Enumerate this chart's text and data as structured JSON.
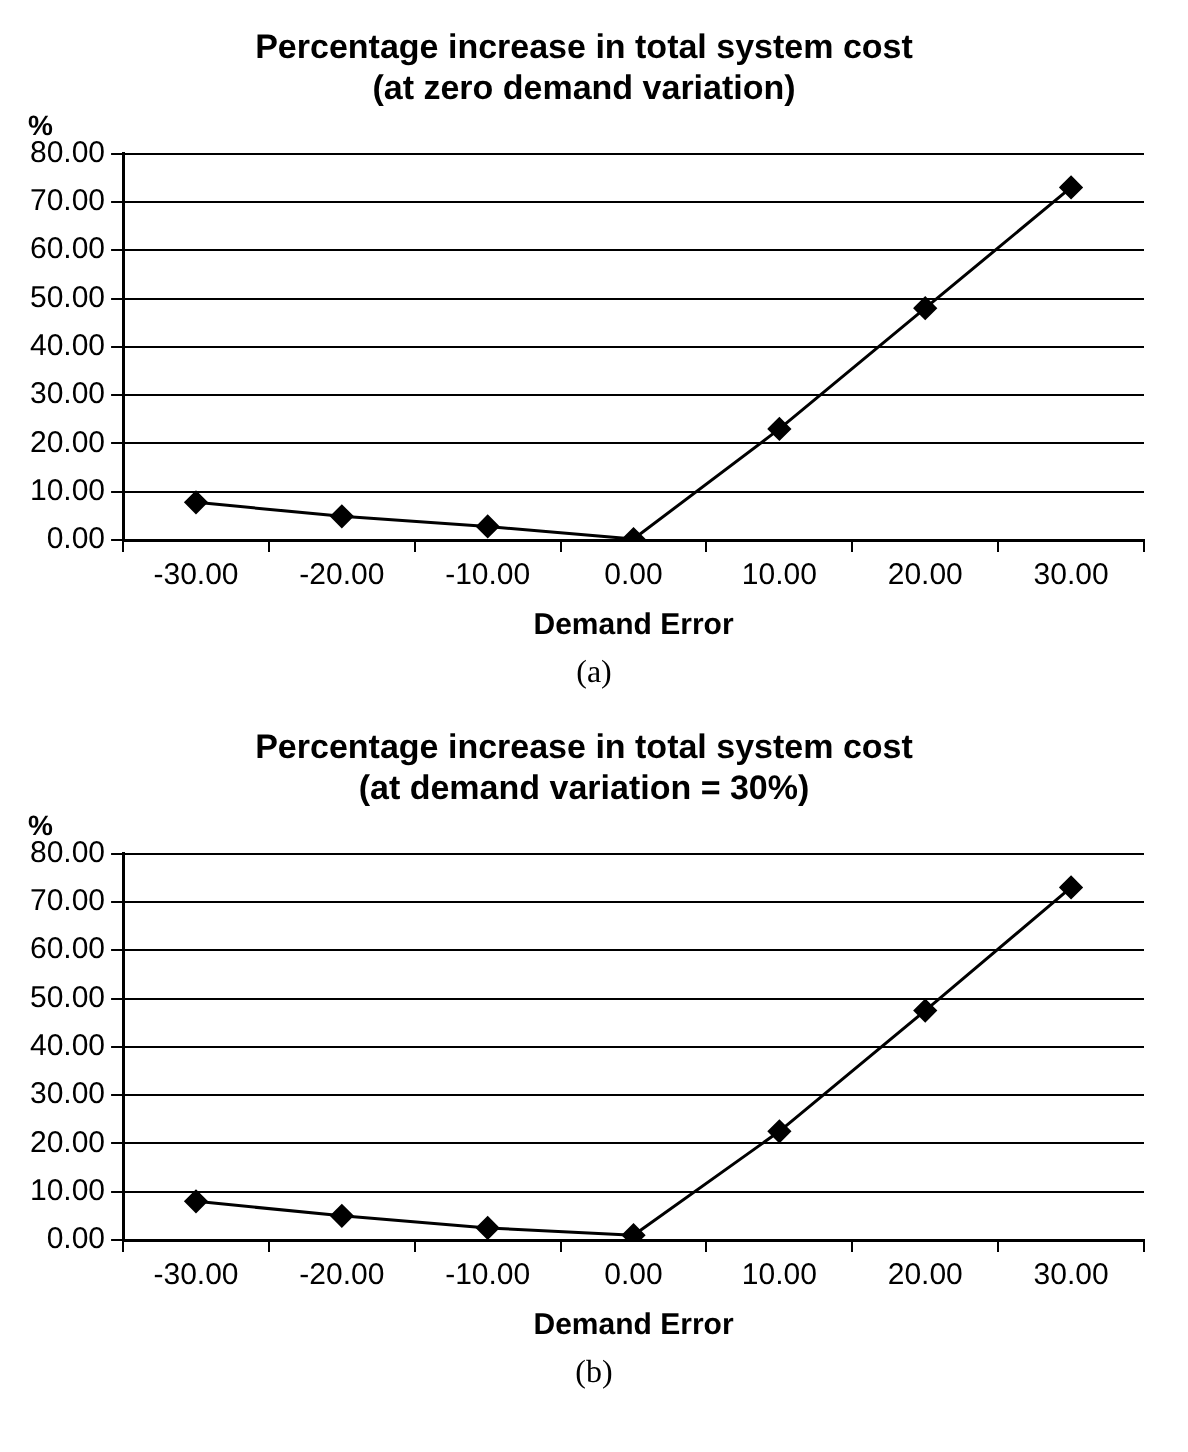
{
  "chart_data": [
    {
      "type": "line",
      "title": "Percentage increase in total system cost",
      "subtitle": "(at zero demand variation)",
      "xlabel": "Demand Error",
      "ylabel": "%",
      "categories": [
        "-30.00",
        "-20.00",
        "-10.00",
        "0.00",
        "10.00",
        "20.00",
        "30.00"
      ],
      "series": [
        {
          "color": "#000000",
          "values": [
            7.8,
            4.9,
            2.8,
            0.2,
            23,
            48,
            73
          ]
        }
      ],
      "ylim": [
        0,
        80
      ],
      "yticks": [
        {
          "value": 0,
          "label": "0.00"
        },
        {
          "value": 10,
          "label": "10.00"
        },
        {
          "value": 20,
          "label": "20.00"
        },
        {
          "value": 30,
          "label": "30.00"
        },
        {
          "value": 40,
          "label": "40.00"
        },
        {
          "value": 50,
          "label": "50.00"
        },
        {
          "value": 60,
          "label": "60.00"
        },
        {
          "value": 70,
          "label": "70.00"
        },
        {
          "value": 80,
          "label": "80.00"
        }
      ],
      "grid": "y",
      "legend": false,
      "marker": "diamond",
      "line_style": "solid",
      "annotations": [
        "(a)"
      ]
    },
    {
      "type": "line",
      "title": "Percentage increase in total system cost",
      "subtitle": "(at demand variation = 30%)",
      "xlabel": "Demand Error",
      "ylabel": "%",
      "categories": [
        "-30.00",
        "-20.00",
        "-10.00",
        "0.00",
        "10.00",
        "20.00",
        "30.00"
      ],
      "series": [
        {
          "color": "#000000",
          "values": [
            8,
            5,
            2.5,
            1,
            22.5,
            47.5,
            73
          ]
        }
      ],
      "ylim": [
        0,
        80
      ],
      "yticks": [
        {
          "value": 0,
          "label": "0.00"
        },
        {
          "value": 10,
          "label": "10.00"
        },
        {
          "value": 20,
          "label": "20.00"
        },
        {
          "value": 30,
          "label": "30.00"
        },
        {
          "value": 40,
          "label": "40.00"
        },
        {
          "value": 50,
          "label": "50.00"
        },
        {
          "value": 60,
          "label": "60.00"
        },
        {
          "value": 70,
          "label": "70.00"
        },
        {
          "value": 80,
          "label": "80.00"
        }
      ],
      "grid": "y",
      "legend": false,
      "marker": "diamond",
      "line_style": "solid",
      "annotations": [
        "(b)"
      ]
    }
  ]
}
